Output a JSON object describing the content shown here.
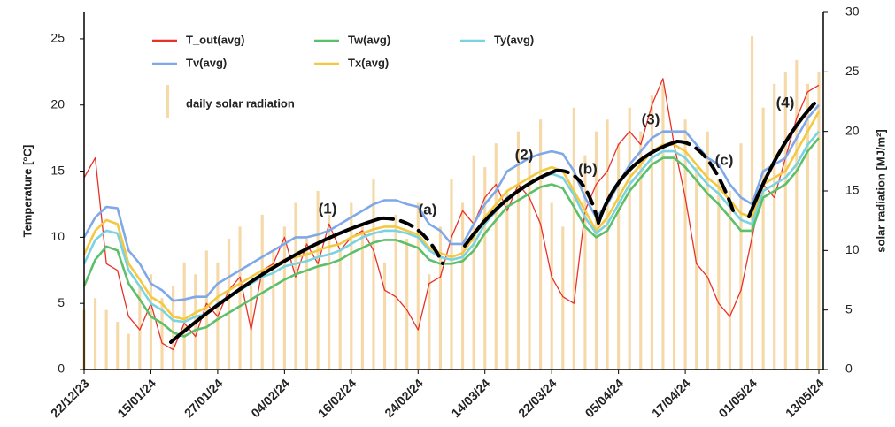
{
  "chart_data": {
    "type": "line",
    "ylabel": "Temperature [°C]",
    "y2label": "solar radiation [MJ/m²]",
    "ylim": [
      0,
      27
    ],
    "yticks": [
      0,
      5,
      10,
      15,
      20,
      25
    ],
    "y2lim": [
      0,
      30
    ],
    "y2ticks": [
      0,
      5,
      10,
      15,
      20,
      25,
      30
    ],
    "xlim": [
      0,
      66
    ],
    "xticks": [
      {
        "value": 0,
        "label": "22/12/23"
      },
      {
        "value": 6,
        "label": "15/01/24"
      },
      {
        "value": 12,
        "label": "27/01/24"
      },
      {
        "value": 18,
        "label": "04/02/24"
      },
      {
        "value": 24,
        "label": "16/02/24"
      },
      {
        "value": 30,
        "label": "24/02/24"
      },
      {
        "value": 36,
        "label": "14/03/24"
      },
      {
        "value": 42,
        "label": "22/03/24"
      },
      {
        "value": 48,
        "label": "05/04/24"
      },
      {
        "value": 54,
        "label": "17/04/24"
      },
      {
        "value": 60,
        "label": "01/05/24"
      },
      {
        "value": 66,
        "label": "13/05/24"
      }
    ],
    "annotations": [
      "(1)",
      "(a)",
      "(2)",
      "(b)",
      "(3)",
      "(c)",
      "(4)"
    ],
    "series": [
      {
        "name": "daily solar radiation",
        "type": "bar",
        "axis": "y2",
        "color": "#f6d9a8",
        "values": [
          5,
          6,
          5,
          4,
          3,
          7,
          8,
          6,
          7,
          9,
          8,
          10,
          9,
          11,
          12,
          7,
          13,
          10,
          12,
          14,
          11,
          15,
          13,
          10,
          14,
          12,
          16,
          9,
          13,
          11,
          14,
          8,
          12,
          16,
          14,
          18,
          17,
          19,
          15,
          20,
          18,
          21,
          14,
          12,
          22,
          18,
          20,
          21,
          19,
          22,
          20,
          23,
          24,
          18,
          21,
          17,
          20,
          16,
          15,
          19,
          28,
          22,
          24,
          25,
          26,
          24,
          25
        ]
      },
      {
        "name": "T_out(avg)",
        "color": "#e8312a",
        "values": [
          14.5,
          16,
          8,
          7.5,
          4,
          3,
          5,
          2,
          1.5,
          3.5,
          2.5,
          5,
          4,
          6,
          7,
          3,
          7.5,
          8,
          10,
          7,
          9.5,
          8,
          11,
          9,
          10,
          10.5,
          9,
          6,
          5.5,
          4.5,
          3,
          6.5,
          7,
          10,
          12,
          11,
          13,
          14,
          12,
          14,
          13,
          11,
          7,
          5.5,
          5,
          12,
          14,
          15,
          17,
          18,
          17,
          20,
          22,
          17,
          13,
          8,
          7,
          5,
          4,
          6,
          10,
          14,
          13,
          16,
          19,
          21,
          21.5
        ]
      },
      {
        "name": "Tw(avg)",
        "color": "#5cbf6a",
        "values": [
          6.3,
          8.3,
          9.3,
          9,
          6.5,
          5.3,
          4,
          3.5,
          2.8,
          2.5,
          3,
          3.2,
          3.8,
          4.3,
          4.8,
          5.3,
          5.8,
          6.3,
          6.8,
          7.2,
          7.5,
          7.8,
          8,
          8.3,
          8.8,
          9.2,
          9.6,
          9.8,
          9.8,
          9.5,
          9.2,
          8.3,
          8,
          8,
          8.2,
          9,
          10.3,
          11.3,
          12.3,
          12.8,
          13.3,
          13.8,
          14,
          13.7,
          12.3,
          10.8,
          10,
          10.5,
          12,
          13.5,
          14.5,
          15.5,
          16,
          16,
          15.3,
          14.3,
          13.3,
          12.5,
          11.5,
          10.5,
          10.5,
          13,
          13.5,
          14,
          15,
          16.5,
          17.5
        ]
      },
      {
        "name": "Ty(avg)",
        "color": "#7ad3e0",
        "values": [
          8,
          9.8,
          10.5,
          10.3,
          7.5,
          6.3,
          5,
          4.5,
          3.7,
          3.6,
          4,
          4.2,
          5,
          5.5,
          6,
          6.5,
          7,
          7.3,
          7.8,
          8,
          8.2,
          8.5,
          8.7,
          9,
          9.5,
          10,
          10.3,
          10.5,
          10.5,
          10.3,
          10,
          9,
          8.5,
          8.3,
          8.5,
          9.5,
          11,
          12,
          13,
          13.5,
          14,
          14.5,
          14.8,
          14.5,
          13.2,
          11.5,
          10.3,
          11,
          12.5,
          14,
          15,
          16,
          16.5,
          16.5,
          16,
          15,
          14,
          13.3,
          12.3,
          11.3,
          11,
          13.5,
          14,
          14.5,
          15.5,
          17,
          18
        ]
      },
      {
        "name": "Tv(avg)",
        "color": "#7fa8e8",
        "values": [
          10,
          11.5,
          12.3,
          12.2,
          9,
          8,
          6.5,
          6,
          5.2,
          5.3,
          5.5,
          5.5,
          6.5,
          7,
          7.5,
          8,
          8.5,
          9,
          9.5,
          10,
          10,
          10.2,
          10.5,
          11,
          11.5,
          12,
          12.5,
          12.8,
          12.8,
          12.5,
          12.3,
          11,
          10.5,
          9.5,
          9.5,
          11,
          12.5,
          13.5,
          15,
          15.5,
          16,
          16.3,
          16.5,
          16.3,
          15,
          13,
          11.5,
          12.5,
          14,
          15.5,
          16.5,
          17.5,
          18,
          18,
          18,
          17,
          16,
          15.5,
          14,
          13,
          12.5,
          15,
          15.5,
          16,
          17.5,
          19,
          20
        ]
      },
      {
        "name": "Tx(avg)",
        "color": "#f5c842",
        "values": [
          8.7,
          10.5,
          11.3,
          11,
          8,
          6.8,
          5.5,
          5,
          4,
          3.8,
          4.3,
          4.7,
          5.5,
          6,
          6.5,
          7,
          7.5,
          7.8,
          8.3,
          8.5,
          8.7,
          9,
          9.3,
          9.5,
          10,
          10.3,
          10.6,
          10.8,
          10.8,
          10.5,
          10.2,
          9.2,
          8.8,
          8.5,
          8.8,
          10,
          11.5,
          12.5,
          13.5,
          14,
          14.5,
          15,
          15.3,
          15,
          13.5,
          12,
          10.5,
          11.5,
          13,
          14.5,
          15.5,
          16.5,
          17,
          17,
          16.5,
          15.5,
          14.5,
          13.8,
          12.8,
          11.8,
          11.5,
          14,
          14.5,
          15,
          16.5,
          18,
          19.5
        ]
      }
    ]
  }
}
